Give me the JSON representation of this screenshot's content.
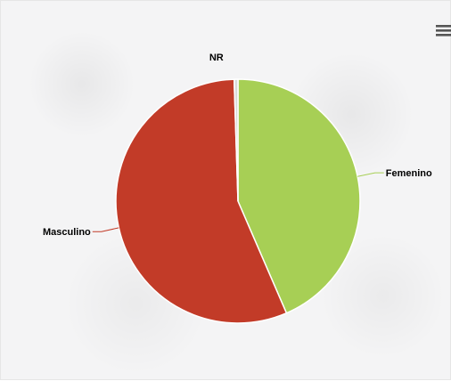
{
  "chart_data": {
    "type": "pie",
    "title": "",
    "slices": [
      {
        "label": "Femenino",
        "value": 43.5,
        "color": "#a7cf55"
      },
      {
        "label": "Masculino",
        "value": 56.0,
        "color": "#c23b28"
      },
      {
        "label": "NR",
        "value": 0.5,
        "color": "#d9d9d9"
      }
    ]
  },
  "toolbar": {
    "menu_icon": "hamburger-menu-icon"
  }
}
